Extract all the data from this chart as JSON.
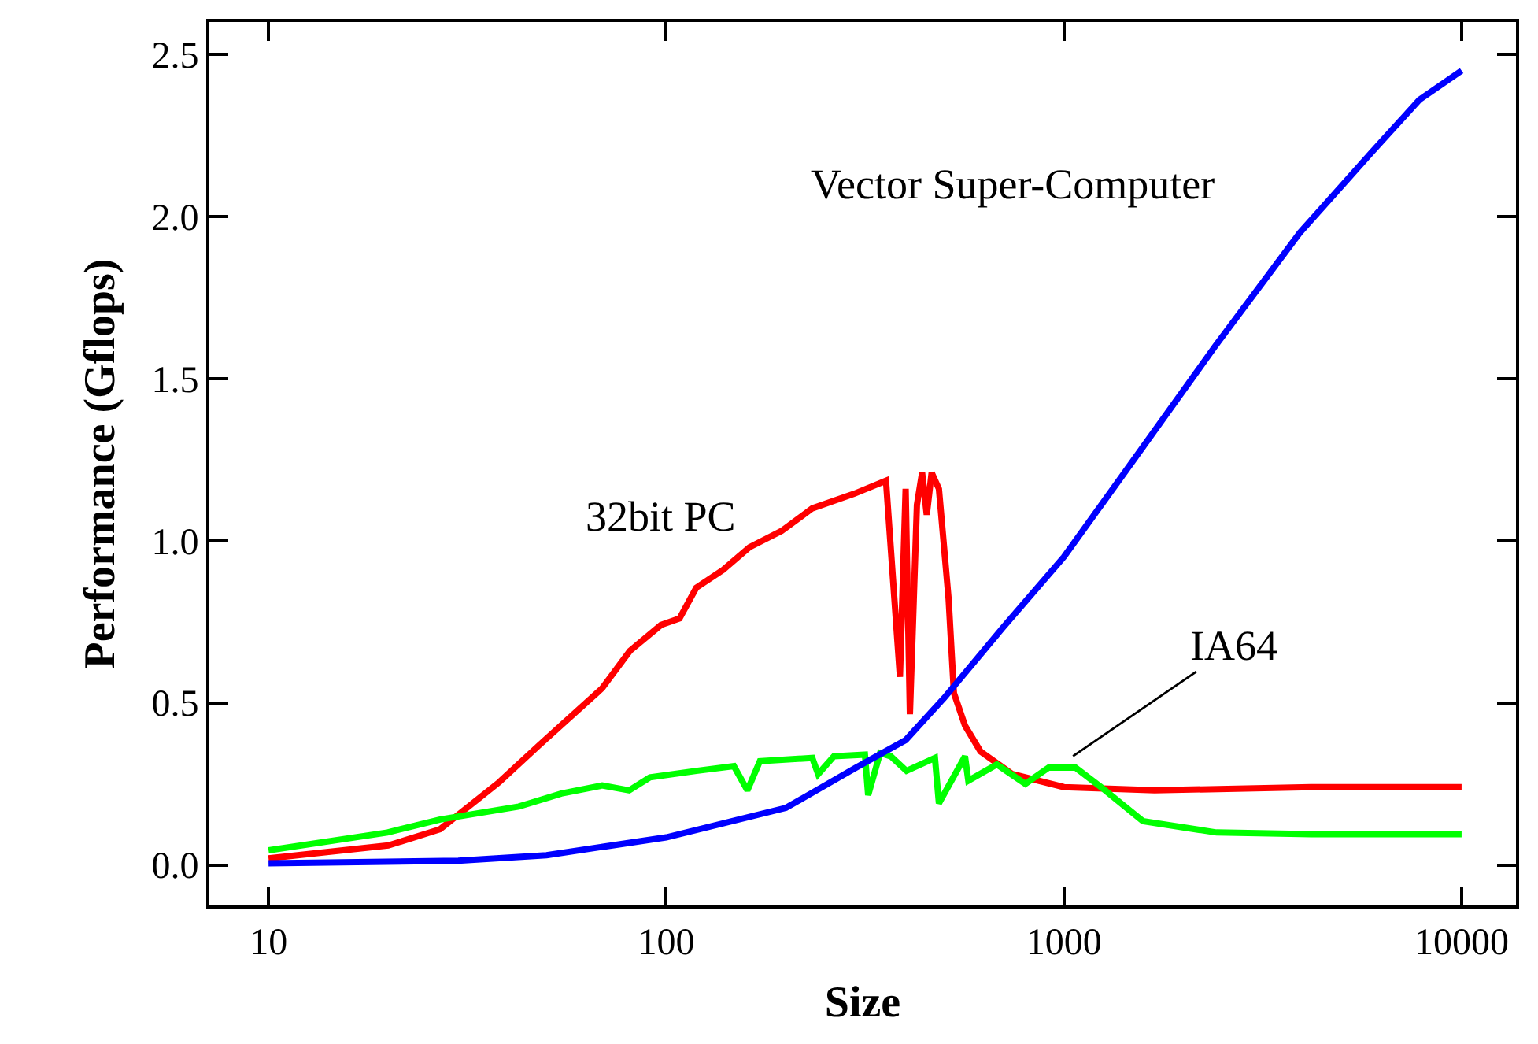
{
  "chart_data": {
    "type": "line",
    "xlabel": "Size",
    "ylabel": "Performance (Gflops)",
    "log": "x",
    "xlim": [
      7.1,
      13700
    ],
    "ylim": [
      -0.125,
      2.6
    ],
    "xticks": [
      10,
      100,
      1000,
      10000
    ],
    "yticks": [
      {
        "value": 0,
        "label": "0.0"
      },
      0.5,
      {
        "value": 1,
        "label": "1.0"
      },
      1.5,
      {
        "value": 2,
        "label": "2.0"
      },
      2.5
    ],
    "grid": false,
    "legend": false,
    "marker": "none",
    "line_style": "solid",
    "series": [
      {
        "name": "32bit PC",
        "color": "#ff0000",
        "x": [
          10,
          20,
          27,
          38,
          48,
          69,
          81,
          97,
          108,
          119,
          139,
          162,
          195,
          233,
          297,
          357,
          387,
          400,
          410,
          427,
          440,
          452,
          465,
          485,
          513,
          529,
          564,
          617,
          742,
          1000,
          1690,
          4180,
          10000
        ],
        "values": [
          0.02,
          0.06,
          0.11,
          0.255,
          0.37,
          0.545,
          0.66,
          0.74,
          0.76,
          0.855,
          0.91,
          0.98,
          1.03,
          1.1,
          1.145,
          1.185,
          0.58,
          1.16,
          0.465,
          1.11,
          1.21,
          1.08,
          1.21,
          1.16,
          0.82,
          0.53,
          0.43,
          0.35,
          0.28,
          0.24,
          0.23,
          0.24,
          0.24
        ]
      },
      {
        "name": "IA64",
        "color": "#00ff00",
        "x": [
          10,
          19.9,
          27,
          42.6,
          54.5,
          69,
          80.7,
          91,
          119,
          148,
          160,
          172,
          233,
          241,
          264,
          316,
          322,
          345,
          367,
          402,
          474,
          485,
          564,
          575,
          678,
          800,
          915,
          1070,
          1240,
          1580,
          2420,
          4190,
          10000
        ],
        "values": [
          0.045,
          0.1,
          0.14,
          0.18,
          0.22,
          0.245,
          0.23,
          0.27,
          0.29,
          0.305,
          0.23,
          0.32,
          0.33,
          0.28,
          0.335,
          0.34,
          0.215,
          0.345,
          0.335,
          0.29,
          0.33,
          0.19,
          0.335,
          0.26,
          0.31,
          0.25,
          0.3,
          0.3,
          0.24,
          0.135,
          0.1,
          0.095,
          0.095
        ]
      },
      {
        "name": "Vector Super-Computer",
        "color": "#0000ff",
        "x": [
          10,
          30,
          50,
          100,
          200,
          300,
          400,
          500,
          700,
          1000,
          1440,
          2400,
          3920,
          5960,
          7830,
          10000
        ],
        "values": [
          0.005,
          0.013,
          0.03,
          0.085,
          0.176,
          0.3,
          0.385,
          0.515,
          0.73,
          0.95,
          1.22,
          1.6,
          1.95,
          2.2,
          2.36,
          2.45
        ]
      }
    ]
  }
}
